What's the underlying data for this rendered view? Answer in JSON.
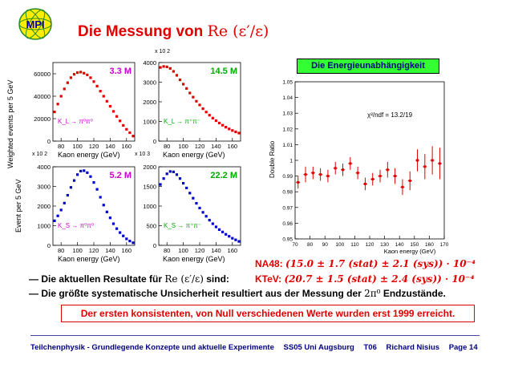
{
  "logo": {
    "text": "MPI"
  },
  "title": {
    "text": "Die Messung von ",
    "math": "Re (ε′/ε)"
  },
  "energy_box": {
    "label": "Die Energieunabhängigkeit"
  },
  "left_panel": {
    "y_label_top": "Weighted events per 5 GeV",
    "y_label_bottom": "Event per 5 GeV",
    "x_label": "Kaon energy (GeV)",
    "x10_a": "x 10 2",
    "x10_b": "x 10 2",
    "x10_c": "x 10 3"
  },
  "chart_data": [
    {
      "type": "scatter",
      "name": "KL_00",
      "count_label": "3.3 M",
      "count_color": "#cc00cc",
      "decay": "K_L → π⁰π⁰",
      "decay_color": "#cc00cc",
      "marker_color": "#e00000",
      "xlim": [
        70,
        170
      ],
      "ylim": [
        0,
        70000
      ],
      "yticks": [
        0,
        20000,
        40000,
        60000
      ],
      "xticks": [
        80,
        100,
        120,
        140,
        160
      ],
      "x": [
        72,
        76,
        80,
        84,
        88,
        92,
        96,
        100,
        104,
        108,
        112,
        116,
        120,
        124,
        128,
        132,
        136,
        140,
        144,
        148,
        152,
        156,
        160,
        164,
        168
      ],
      "y": [
        26000,
        33000,
        40000,
        46500,
        52000,
        56500,
        59500,
        61000,
        61500,
        60500,
        59000,
        56500,
        53000,
        49000,
        44500,
        40000,
        35500,
        31000,
        26500,
        22000,
        18000,
        14000,
        10500,
        7500,
        4500
      ]
    },
    {
      "type": "scatter",
      "name": "KL_pm",
      "count_label": "14.5 M",
      "count_color": "#00aa00",
      "decay": "K_L → π⁺π⁻",
      "decay_color": "#00aa00",
      "marker_color": "#e00000",
      "xlim": [
        70,
        170
      ],
      "ylim": [
        0,
        4000
      ],
      "yticks": [
        0,
        1000,
        2000,
        3000,
        4000
      ],
      "xticks": [
        80,
        100,
        120,
        140,
        160
      ],
      "x": [
        72,
        76,
        80,
        84,
        88,
        92,
        96,
        100,
        104,
        108,
        112,
        116,
        120,
        124,
        128,
        132,
        136,
        140,
        144,
        148,
        152,
        156,
        160,
        164,
        168
      ],
      "y": [
        3750,
        3800,
        3780,
        3700,
        3550,
        3350,
        3120,
        2900,
        2680,
        2450,
        2240,
        2030,
        1840,
        1650,
        1480,
        1320,
        1170,
        1040,
        920,
        810,
        710,
        620,
        540,
        470,
        410
      ]
    },
    {
      "type": "scatter",
      "name": "KS_00",
      "count_label": "5.2 M",
      "count_color": "#cc00cc",
      "decay": "K_S → π⁰π⁰",
      "decay_color": "#cc00cc",
      "marker_color": "#0000cc",
      "xlim": [
        70,
        170
      ],
      "ylim": [
        0,
        4000
      ],
      "yticks": [
        0,
        1000,
        2000,
        3000,
        4000
      ],
      "xticks": [
        80,
        100,
        120,
        140,
        160
      ],
      "x": [
        72,
        76,
        80,
        84,
        88,
        92,
        96,
        100,
        104,
        108,
        112,
        116,
        120,
        124,
        128,
        132,
        136,
        140,
        144,
        148,
        152,
        156,
        160,
        164,
        168
      ],
      "y": [
        1250,
        1500,
        1800,
        2150,
        2550,
        2950,
        3300,
        3600,
        3780,
        3800,
        3700,
        3500,
        3200,
        2850,
        2450,
        2050,
        1700,
        1400,
        1100,
        850,
        650,
        480,
        330,
        220,
        130
      ]
    },
    {
      "type": "scatter",
      "name": "KS_pm",
      "count_label": "22.2 M",
      "count_color": "#00aa00",
      "decay": "K_S → π⁺π⁻",
      "decay_color": "#00aa00",
      "marker_color": "#0000cc",
      "xlim": [
        70,
        170
      ],
      "ylim": [
        0,
        2000
      ],
      "yticks": [
        0,
        500,
        1000,
        1500,
        2000
      ],
      "xticks": [
        80,
        100,
        120,
        140,
        160
      ],
      "x": [
        72,
        76,
        80,
        84,
        88,
        92,
        96,
        100,
        104,
        108,
        112,
        116,
        120,
        124,
        128,
        132,
        136,
        140,
        144,
        148,
        152,
        156,
        160,
        164,
        168
      ],
      "y": [
        1550,
        1700,
        1820,
        1880,
        1870,
        1800,
        1700,
        1580,
        1460,
        1330,
        1200,
        1070,
        950,
        840,
        740,
        640,
        550,
        470,
        400,
        340,
        280,
        230,
        180,
        140,
        100
      ]
    },
    {
      "type": "scatter",
      "name": "double_ratio",
      "ylabel": "Double Ratio",
      "xlabel": "Kaon energy (GeV)",
      "annotation": "χ²/ndf = 13.2/19",
      "marker_color": "#e00000",
      "xlim": [
        70,
        170
      ],
      "ylim": [
        0.95,
        1.05
      ],
      "xticks": [
        70,
        80,
        90,
        100,
        110,
        120,
        130,
        140,
        150,
        160,
        170
      ],
      "yticks": [
        0.95,
        0.96,
        0.97,
        0.98,
        0.99,
        1,
        1.01,
        1.02,
        1.03,
        1.04,
        1.05
      ],
      "ytick_labels": [
        "0.95",
        "0.96",
        "0.97",
        "0.98",
        "0.99",
        "1",
        "1.01",
        "1.02",
        "1.03",
        "1.04",
        "1.05"
      ],
      "x": [
        72,
        77,
        82,
        87,
        92,
        97,
        102,
        107,
        112,
        117,
        122,
        127,
        132,
        137,
        142,
        147,
        152,
        157,
        162,
        167
      ],
      "y": [
        0.986,
        0.991,
        0.992,
        0.991,
        0.99,
        0.995,
        0.994,
        0.998,
        0.992,
        0.985,
        0.988,
        0.99,
        0.994,
        0.99,
        0.983,
        0.987,
        1.0,
        0.996,
        1.0,
        0.998
      ],
      "err": [
        0.004,
        0.005,
        0.004,
        0.004,
        0.004,
        0.004,
        0.004,
        0.004,
        0.004,
        0.004,
        0.004,
        0.004,
        0.005,
        0.005,
        0.005,
        0.006,
        0.007,
        0.008,
        0.009,
        0.01
      ]
    }
  ],
  "results": {
    "na48": {
      "label": "NA48:",
      "value": "(15.0 ± 1.7 (stat) ± 2.1 (sys)) · 10⁻⁴"
    },
    "ktev": {
      "label": "KTeV:",
      "value": "(20.7 ± 1.5 (stat) ± 2.4 (sys)) · 10⁻⁴"
    }
  },
  "bullets": {
    "b1": {
      "text": "— Die aktuellen Resultate für ",
      "math": "Re (ε′/ε)",
      "suffix": " sind:"
    },
    "b2": {
      "text": "— Die größte systematische Unsicherheit resultiert aus der Messung der ",
      "math": "2π⁰",
      "suffix": " Endzustände."
    }
  },
  "note_box": {
    "text": "Der ersten konsistenten, von Null verschiedenen Werte wurden erst 1999 erreicht."
  },
  "footer": {
    "course": "Teilchenphysik - Grundlegende Konzepte und aktuelle Experimente",
    "term": "SS05 Uni Augsburg",
    "code": "T06",
    "author": "Richard Nisius",
    "page": "Page 14"
  }
}
